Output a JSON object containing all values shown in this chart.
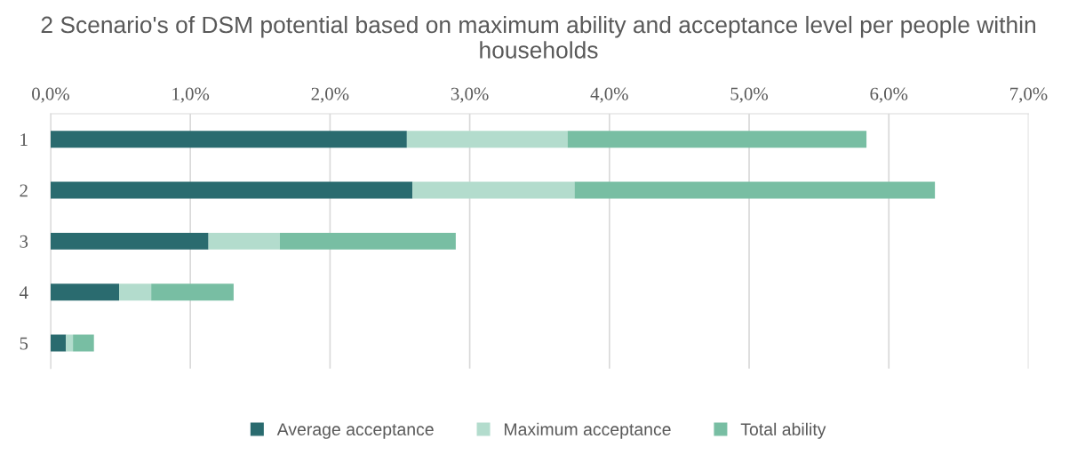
{
  "chart_data": {
    "type": "bar",
    "orientation": "horizontal",
    "stacked": true,
    "title": "2 Scenario's of DSM potential based on maximum ability and acceptance level per people within households",
    "categories": [
      "1",
      "2",
      "3",
      "4",
      "5"
    ],
    "series": [
      {
        "name": "Average acceptance",
        "color": "#2a6b6f",
        "values": [
          2.55,
          2.59,
          1.13,
          0.49,
          0.11
        ]
      },
      {
        "name": "Maximum acceptance",
        "color": "#b3dccd",
        "values": [
          1.15,
          1.16,
          0.51,
          0.23,
          0.05
        ]
      },
      {
        "name": "Total ability",
        "color": "#78bea3",
        "values": [
          2.14,
          2.58,
          1.26,
          0.59,
          0.15
        ]
      }
    ],
    "xlim": [
      0,
      7
    ],
    "xticks": [
      {
        "value": 0,
        "label": "0,0%"
      },
      {
        "value": 1,
        "label": "1,0%"
      },
      {
        "value": 2,
        "label": "2,0%"
      },
      {
        "value": 3,
        "label": "3,0%"
      },
      {
        "value": 4,
        "label": "4,0%"
      },
      {
        "value": 5,
        "label": "5,0%"
      },
      {
        "value": 6,
        "label": "6,0%"
      },
      {
        "value": 7,
        "label": "7,0%"
      }
    ],
    "grid": "x",
    "legend": "bottom"
  }
}
